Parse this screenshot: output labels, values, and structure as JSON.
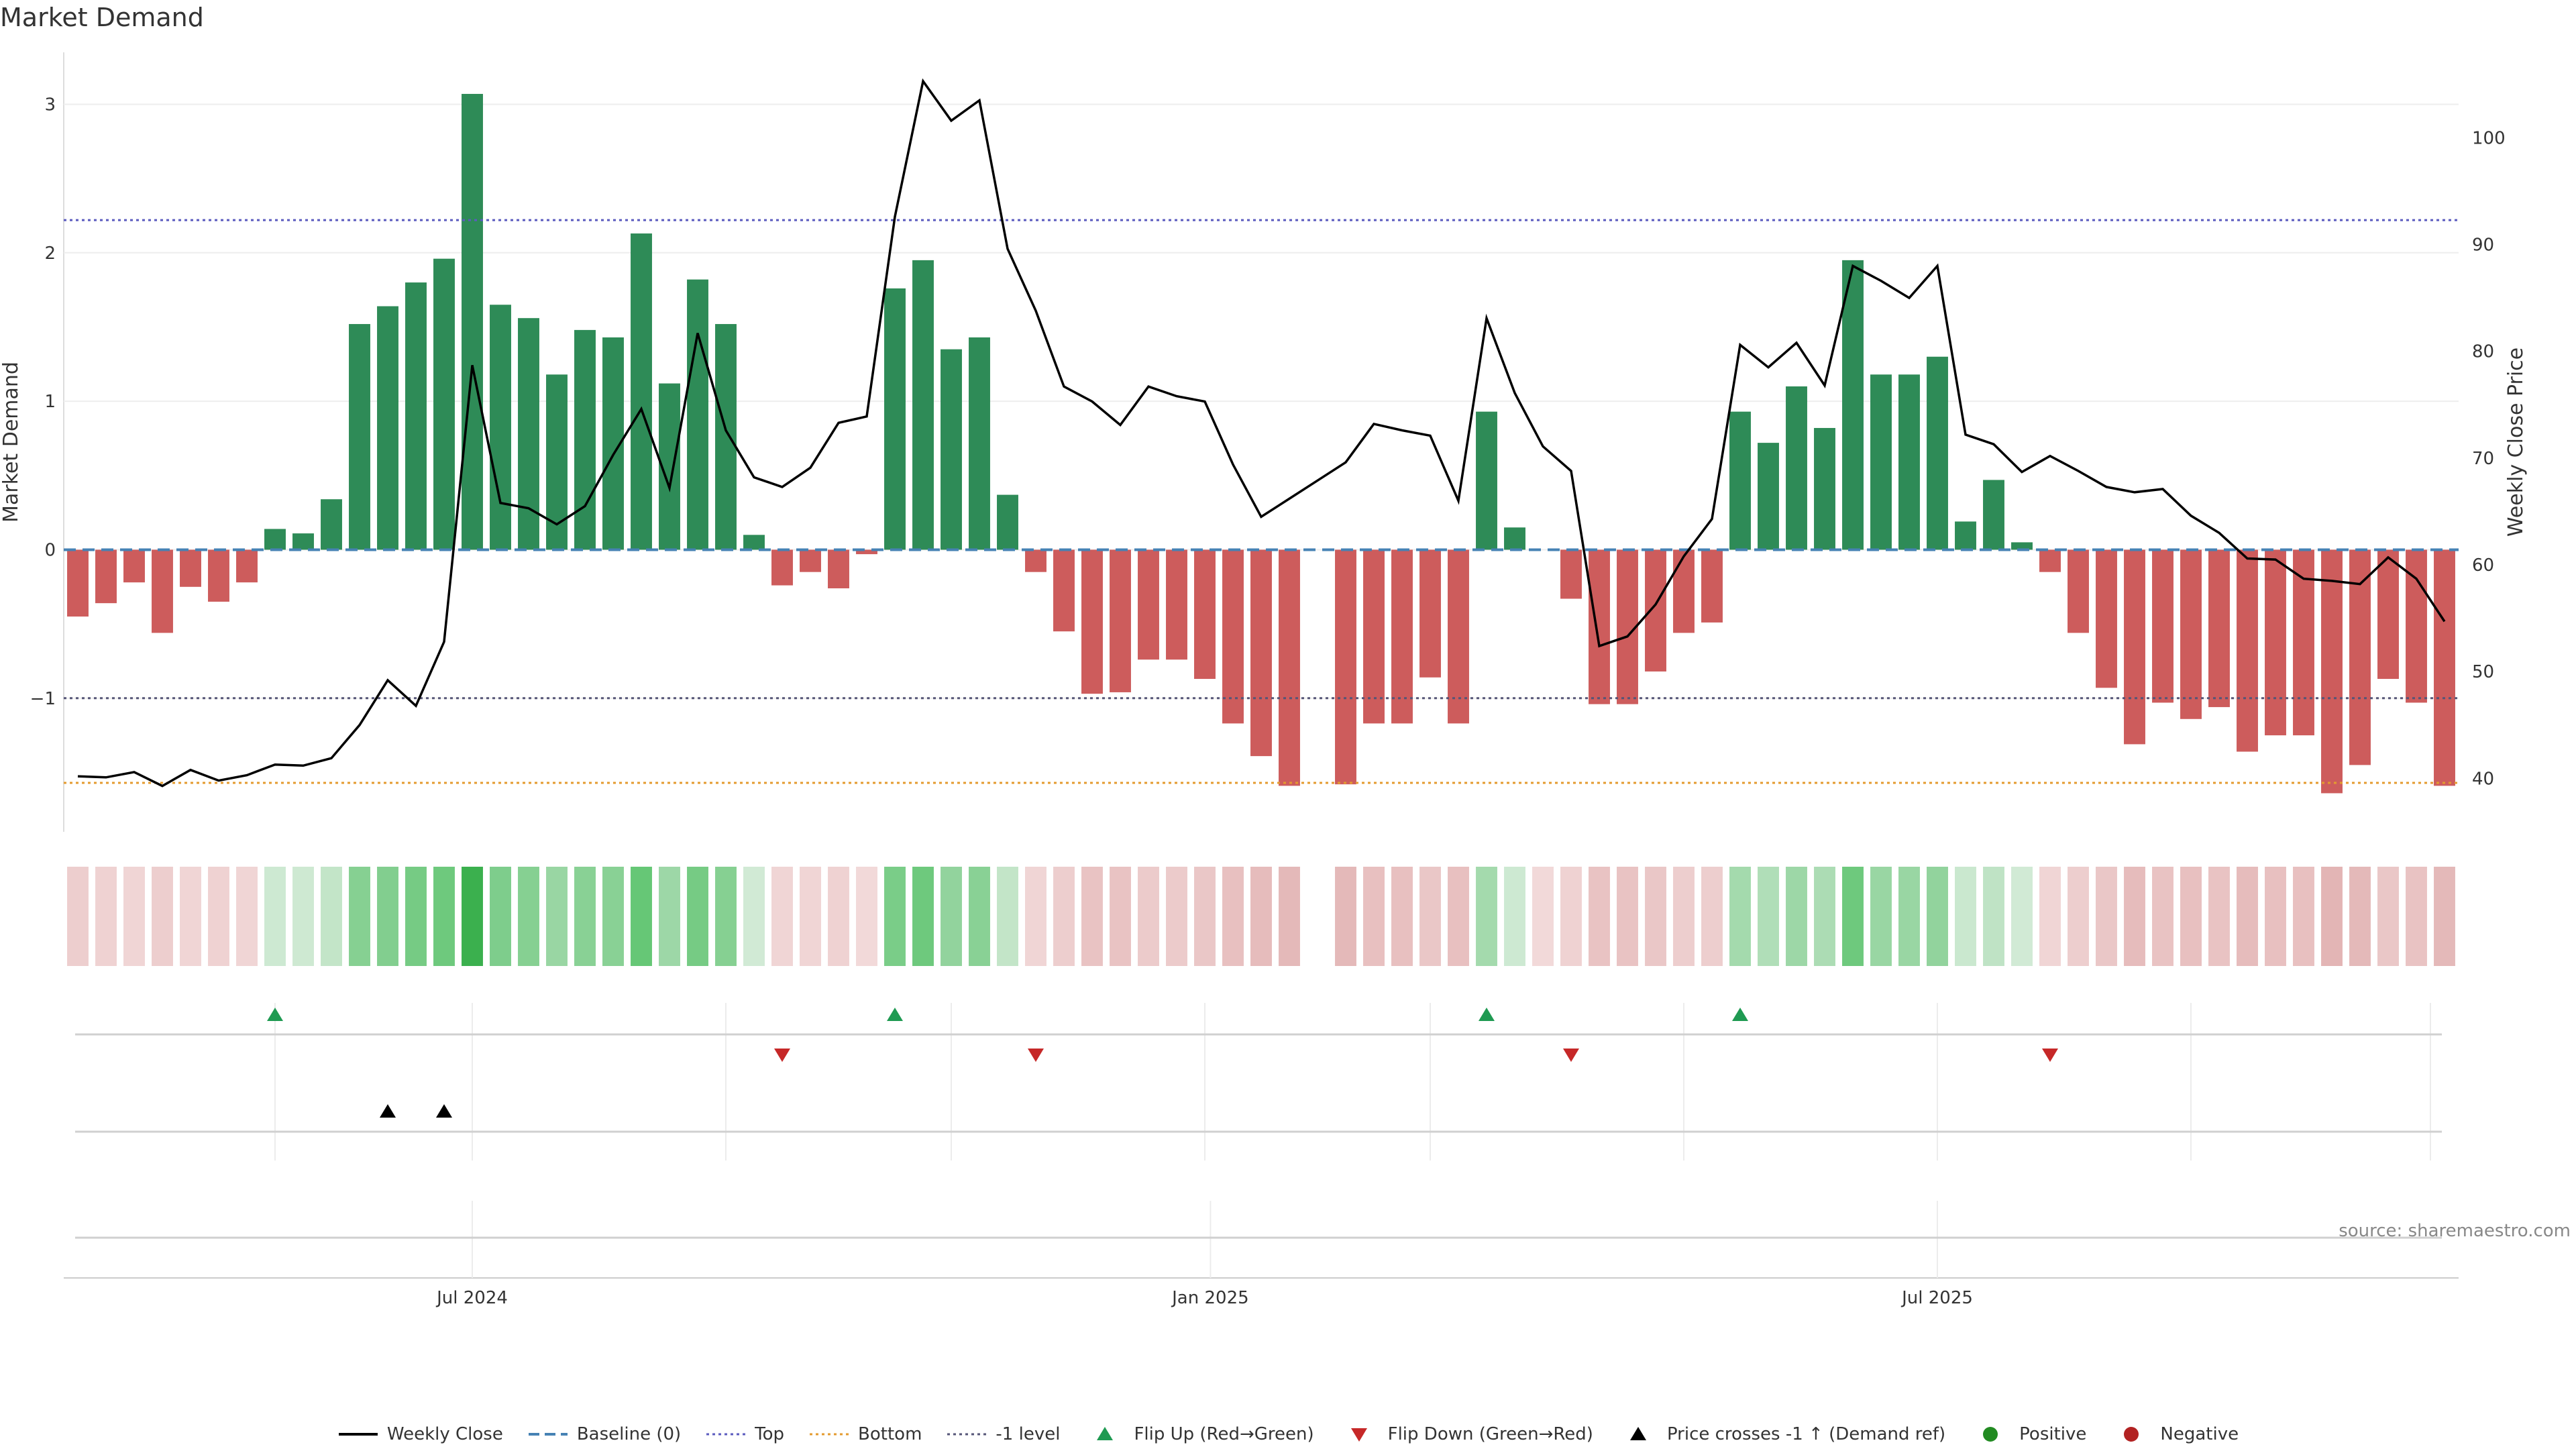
{
  "chart_data": {
    "type": "bar",
    "title": "Market Demand",
    "ylabel_left": "Market Demand",
    "ylabel_right": "Weekly Close Price",
    "ylim_left": [
      -1.9,
      3.35
    ],
    "ylim_right": [
      35.0,
      108.0
    ],
    "left_ticks": [
      -1,
      0,
      1,
      2,
      3
    ],
    "left_tick_labels": [
      "−1",
      "0",
      "1",
      "2",
      "3"
    ],
    "right_ticks": [
      40,
      50,
      60,
      70,
      80,
      90,
      100
    ],
    "right_tick_labels": [
      "40",
      "50",
      "60",
      "70",
      "80",
      "90",
      "100"
    ],
    "x_tick_labels": [
      {
        "label": "Jul 2024",
        "week": 14.5
      },
      {
        "label": "Jan 2025",
        "week": 40.7
      },
      {
        "label": "Jul 2025",
        "week": 66.5
      }
    ],
    "reference_lines": {
      "baseline": 0,
      "top": 2.22,
      "bottom": -1.57,
      "minus_one": -1
    },
    "demand": [
      -0.45,
      -0.36,
      -0.22,
      -0.56,
      -0.25,
      -0.35,
      -0.22,
      0.14,
      0.11,
      0.34,
      1.52,
      1.64,
      1.8,
      1.96,
      3.07,
      1.65,
      1.56,
      1.18,
      1.48,
      1.43,
      2.13,
      1.12,
      1.82,
      1.52,
      0.1,
      -0.24,
      -0.15,
      -0.26,
      -0.03,
      1.76,
      1.95,
      1.35,
      1.43,
      0.37,
      -0.15,
      -0.55,
      -0.97,
      -0.96,
      -0.74,
      -0.74,
      -0.87,
      -1.17,
      -1.39,
      -1.59,
      null,
      -1.58,
      -1.17,
      -1.17,
      -0.86,
      -1.17,
      0.93,
      0.15,
      0,
      -0.33,
      -1.04,
      -1.04,
      -0.82,
      -0.56,
      -0.49,
      0.93,
      0.72,
      1.1,
      0.82,
      1.95,
      1.18,
      1.18,
      1.3,
      0.19,
      0.47,
      0.05,
      -0.15,
      -0.56,
      -0.93,
      -1.31,
      -1.03,
      -1.14,
      -1.06,
      -1.36,
      -1.25,
      -1.25,
      -1.64,
      -1.45,
      -0.87,
      -1.03,
      -1.59
    ],
    "close_x": [
      0.5,
      1.5,
      2.5,
      3.5,
      4.5,
      5.5,
      6.5,
      7.5,
      8.5,
      9.5,
      10.5,
      11.5,
      12.5,
      13.5,
      14.5,
      15.5,
      16.5,
      17.5,
      18.5,
      19.5,
      20.5,
      21.5,
      22.5,
      23.5,
      24.5,
      25.5,
      26.5,
      27.5,
      28.5,
      29.5,
      30.5,
      31.5,
      32.5,
      33.5,
      34.5,
      35.5,
      36.5,
      37.5,
      38.5,
      39.5,
      40.5,
      41.5,
      42.5,
      43.5,
      44.5,
      45.5,
      46.5,
      47.5,
      48.5,
      49.5,
      50.5,
      51.5,
      52.5,
      53.5,
      54.5,
      55.5,
      56.5,
      57.5,
      58.5,
      59.5,
      60.5,
      61.5,
      62.5,
      63.5,
      64.5,
      65.5,
      66.5,
      67.5,
      68.5,
      69.5,
      70.5,
      71.5,
      72.5,
      73.5,
      74.5,
      75.5,
      76.5,
      77.5,
      78.5,
      79.5,
      80.5,
      81.5,
      82.5,
      83.5,
      84.5
    ],
    "close": [
      40.2,
      40.1,
      40.6,
      39.3,
      40.8,
      39.8,
      40.3,
      41.3,
      41.2,
      41.9,
      45.0,
      49.2,
      46.8,
      52.8,
      78.7,
      65.8,
      65.3,
      63.8,
      65.5,
      70.3,
      74.6,
      67.2,
      81.7,
      72.6,
      68.2,
      67.3,
      69.1,
      73.3,
      73.9,
      92.6,
      105.3,
      101.6,
      103.5,
      89.6,
      83.8,
      76.7,
      75.3,
      73.1,
      76.7,
      75.8,
      75.3,
      69.4,
      64.5,
      66.2,
      67.9,
      69.6,
      73.2,
      72.6,
      72.1,
      66.0,
      83.1,
      76.1,
      71.1,
      68.8,
      52.4,
      53.3,
      56.3,
      60.8,
      64.3,
      80.6,
      78.5,
      80.8,
      76.8,
      88.0,
      86.6,
      85.0,
      88.0,
      72.2,
      71.3,
      68.7,
      70.2,
      68.8,
      67.3,
      66.8,
      67.1,
      64.6,
      63.0,
      60.6,
      60.5,
      58.7,
      58.5,
      58.2,
      60.7,
      58.7,
      54.7
    ],
    "flip_up_weeks": [
      7.5,
      29.5,
      50.5,
      59.5
    ],
    "flip_down_weeks": [
      25.5,
      34.5,
      53.5,
      70.5
    ],
    "price_cross_weeks": [
      11.5,
      13.5
    ],
    "source": "source: sharemaestro.com",
    "legend": [
      {
        "key": "weekly_close",
        "label": "Weekly Close"
      },
      {
        "key": "baseline",
        "label": "Baseline (0)"
      },
      {
        "key": "top",
        "label": "Top"
      },
      {
        "key": "bottom",
        "label": "Bottom"
      },
      {
        "key": "minus_one",
        "label": "-1 level"
      },
      {
        "key": "flip_up",
        "label": "Flip Up (Red→Green)"
      },
      {
        "key": "flip_down",
        "label": "Flip Down (Green→Red)"
      },
      {
        "key": "price_cross",
        "label": "Price crosses -1 ↑ (Demand ref)"
      },
      {
        "key": "positive",
        "label": "Positive"
      },
      {
        "key": "negative",
        "label": "Negative"
      }
    ]
  },
  "colors": {
    "positive": "#2e8b57",
    "negative": "#cd5c5c",
    "price_line": "#000000",
    "baseline": "#4682b4",
    "top": "#5b5bbf",
    "bottom": "#e49b2f",
    "minus_one": "#555577",
    "flip_up": "#1f9a52",
    "flip_down": "#c62828",
    "price_cross": "#000000",
    "legend_positive": "#228b22",
    "legend_negative": "#b22222"
  }
}
